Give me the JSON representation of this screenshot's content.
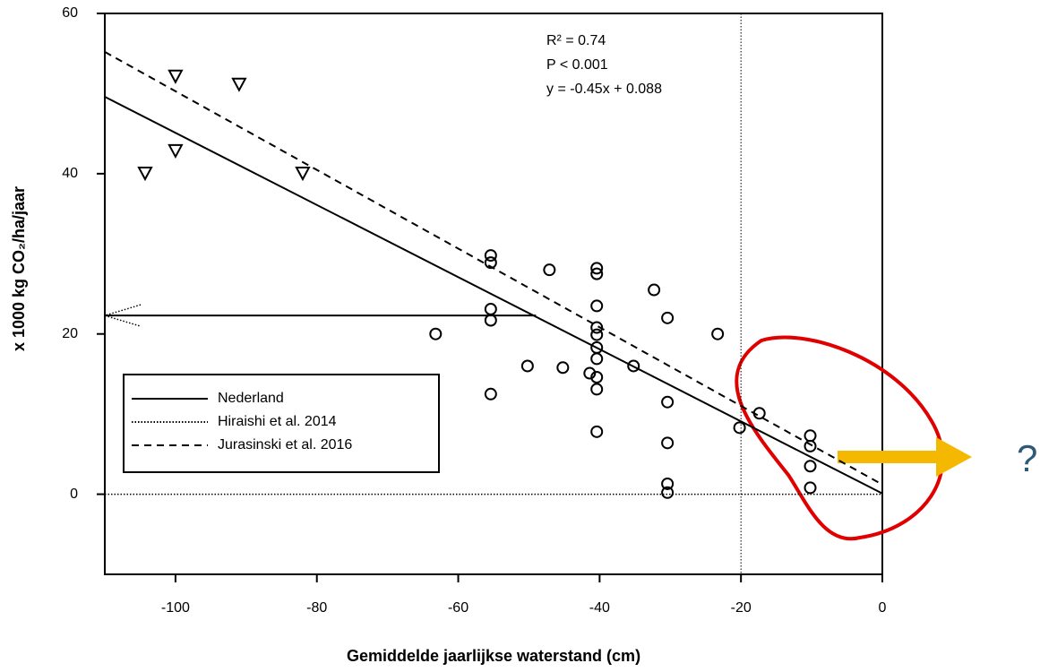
{
  "chart_data": {
    "type": "scatter",
    "xlabel": "Gemiddelde jaarlijkse waterstand (cm)",
    "ylabel": "x 1000 kg CO₂/ha/jaar",
    "xlim": [
      -110,
      0
    ],
    "ylim": [
      -10,
      60
    ],
    "xticks": [
      -100,
      -80,
      -60,
      -40,
      -20,
      0
    ],
    "yticks": [
      0,
      20,
      40,
      60
    ],
    "annotations": [
      "R² = 0.74",
      "P < 0.001",
      "y = -0.45x + 0.088"
    ],
    "question": "?",
    "vline": -20,
    "arrow": {
      "x": [
        -110,
        -49
      ],
      "y": [
        22.3,
        22.3
      ]
    },
    "series": [
      {
        "marker": "triangle",
        "color": "#000000",
        "x": [
          -104.3,
          -100,
          -100,
          -91,
          -82
        ],
        "values": [
          40.1,
          52.2,
          42.9,
          51.2,
          40.1
        ]
      },
      {
        "marker": "circle",
        "color": "#000000",
        "x": [
          -55.4,
          -55.4,
          -55.4,
          -55.4,
          -55.4,
          -63.2,
          -50.2,
          -47.1,
          -45.2,
          -41.4,
          -40.4,
          -40.4,
          -40.4,
          -40.4,
          -40.4,
          -40.4,
          -40.4,
          -40.4,
          -40.4,
          -40.4,
          -35.2,
          -32.3,
          -30.4,
          -30.4,
          -30.4,
          -30.4,
          -30.4,
          -23.3,
          -20.2,
          -17.4,
          -10.2,
          -10.2,
          -10.2,
          -10.2
        ],
        "values": [
          29.8,
          28.9,
          23.1,
          21.7,
          12.5,
          20,
          16,
          28,
          15.8,
          15.1,
          28.2,
          27.5,
          23.5,
          20.8,
          19.9,
          18.3,
          16.9,
          14.6,
          13.1,
          7.8,
          16,
          25.5,
          22,
          11.5,
          6.4,
          1.3,
          0.2,
          20,
          8.3,
          10.1,
          7.3,
          6,
          3.5,
          0.8
        ]
      }
    ],
    "lines": [
      {
        "name": "Nederland",
        "style": "solid",
        "x": [
          -110,
          0
        ],
        "values": [
          49.6,
          0.088
        ]
      },
      {
        "name": "Hiraishi et al. 2014",
        "style": "dotted",
        "x": [
          -110,
          0
        ],
        "values": [
          0,
          0
        ]
      },
      {
        "name": "Jurasinski et al. 2016",
        "style": "dashed",
        "x": [
          -110,
          0
        ],
        "values": [
          55.2,
          1.2
        ]
      }
    ]
  }
}
